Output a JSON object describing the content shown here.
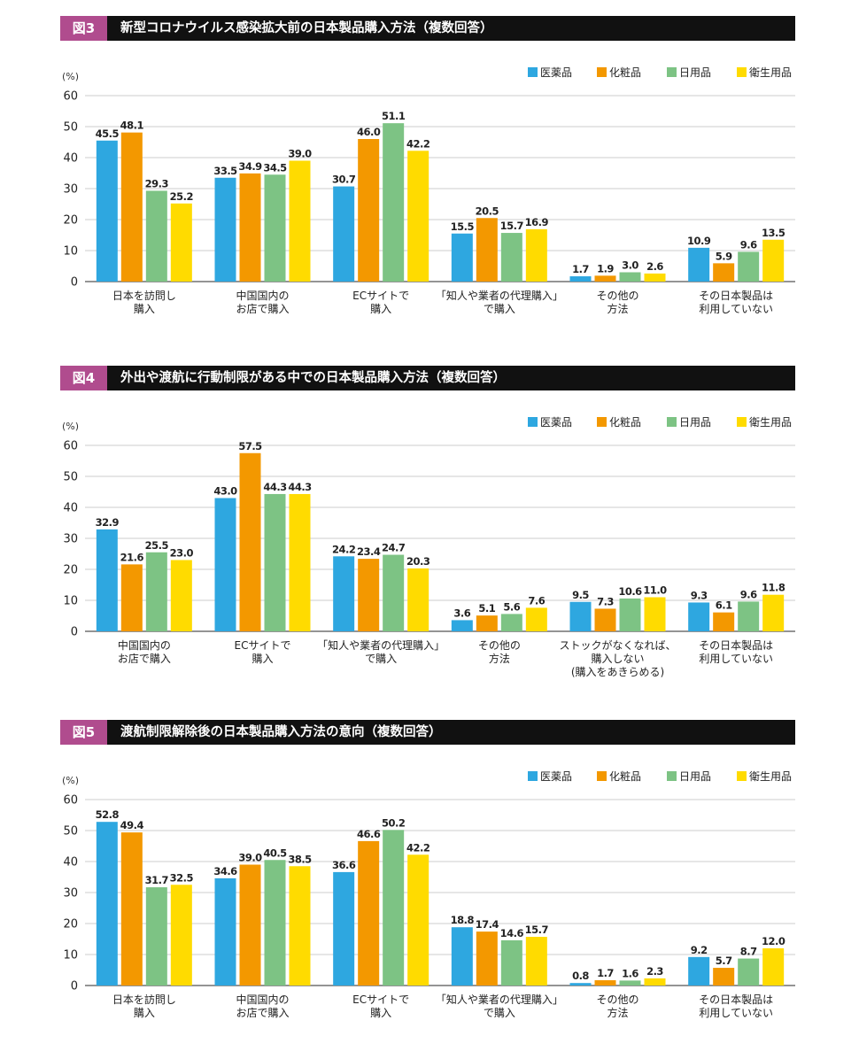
{
  "colors": {
    "医薬品": "#2ea7e0",
    "化粧品": "#f39800",
    "日用品": "#7dc384",
    "衛生用品": "#ffdb00",
    "tag": "#b04c8e",
    "title_bg": "#111111"
  },
  "charts": [
    {
      "tag": "図3",
      "title": "新型コロナウイルス感染拡大前の日本製品購入方法（複数回答）"
    },
    {
      "tag": "図4",
      "title": "外出や渡航に行動制限がある中での日本製品購入方法（複数回答）"
    },
    {
      "tag": "図5",
      "title": "渡航制限解除後の日本製品購入方法の意向（複数回答）"
    }
  ],
  "chart_data": [
    {
      "type": "bar",
      "title": "新型コロナウイルス感染拡大前の日本製品購入方法（複数回答）",
      "ylabel": "(%)",
      "ylim": [
        0,
        60
      ],
      "yticks": [
        0,
        10,
        20,
        30,
        40,
        50,
        60
      ],
      "grid": true,
      "legend": "top-right",
      "categories": [
        [
          "日本を訪問し",
          "購入"
        ],
        [
          "中国国内の",
          "お店で購入"
        ],
        [
          "ECサイトで",
          "購入"
        ],
        [
          "「知人や業者の代理購入」",
          "で購入"
        ],
        [
          "その他の",
          "方法"
        ],
        [
          "その日本製品は",
          "利用していない"
        ]
      ],
      "series": [
        {
          "name": "医薬品",
          "values": [
            45.5,
            33.5,
            30.7,
            15.5,
            1.7,
            10.9
          ]
        },
        {
          "name": "化粧品",
          "values": [
            48.1,
            34.9,
            46.0,
            20.5,
            1.9,
            5.9
          ]
        },
        {
          "name": "日用品",
          "values": [
            29.3,
            34.5,
            51.1,
            15.7,
            3.0,
            9.6
          ]
        },
        {
          "name": "衛生用品",
          "values": [
            25.2,
            39.0,
            42.2,
            16.9,
            2.6,
            13.5
          ]
        }
      ]
    },
    {
      "type": "bar",
      "title": "外出や渡航に行動制限がある中での日本製品購入方法（複数回答）",
      "ylabel": "(%)",
      "ylim": [
        0,
        60
      ],
      "yticks": [
        0,
        10,
        20,
        30,
        40,
        50,
        60
      ],
      "grid": true,
      "legend": "top-right",
      "categories": [
        [
          "中国国内の",
          "お店で購入"
        ],
        [
          "ECサイトで",
          "購入"
        ],
        [
          "「知人や業者の代理購入」",
          "で購入"
        ],
        [
          "その他の",
          "方法"
        ],
        [
          "ストックがなくなれば、",
          "購入しない",
          "(購入をあきらめる)"
        ],
        [
          "その日本製品は",
          "利用していない"
        ]
      ],
      "series": [
        {
          "name": "医薬品",
          "values": [
            32.9,
            43.0,
            24.2,
            3.6,
            9.5,
            9.3
          ]
        },
        {
          "name": "化粧品",
          "values": [
            21.6,
            57.5,
            23.4,
            5.1,
            7.3,
            6.1
          ]
        },
        {
          "name": "日用品",
          "values": [
            25.5,
            44.3,
            24.7,
            5.6,
            10.6,
            9.6
          ]
        },
        {
          "name": "衛生用品",
          "values": [
            23.0,
            44.3,
            20.3,
            7.6,
            11.0,
            11.8
          ]
        }
      ]
    },
    {
      "type": "bar",
      "title": "渡航制限解除後の日本製品購入方法の意向（複数回答）",
      "ylabel": "(%)",
      "ylim": [
        0,
        60
      ],
      "yticks": [
        0,
        10,
        20,
        30,
        40,
        50,
        60
      ],
      "grid": true,
      "legend": "top-right",
      "categories": [
        [
          "日本を訪問し",
          "購入"
        ],
        [
          "中国国内の",
          "お店で購入"
        ],
        [
          "ECサイトで",
          "購入"
        ],
        [
          "「知人や業者の代理購入」",
          "で購入"
        ],
        [
          "その他の",
          "方法"
        ],
        [
          "その日本製品は",
          "利用していない"
        ]
      ],
      "series": [
        {
          "name": "医薬品",
          "values": [
            52.8,
            34.6,
            36.6,
            18.8,
            0.8,
            9.2
          ]
        },
        {
          "name": "化粧品",
          "values": [
            49.4,
            39.0,
            46.6,
            17.4,
            1.7,
            5.7
          ]
        },
        {
          "name": "日用品",
          "values": [
            31.7,
            40.5,
            50.2,
            14.6,
            1.6,
            8.7
          ]
        },
        {
          "name": "衛生用品",
          "values": [
            32.5,
            38.5,
            42.2,
            15.7,
            2.3,
            12.0
          ]
        }
      ]
    }
  ]
}
